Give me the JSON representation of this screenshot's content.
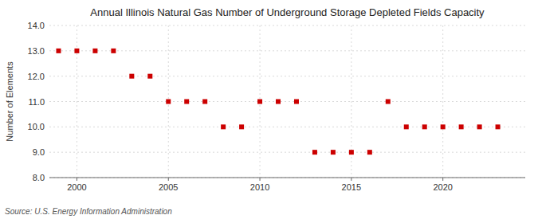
{
  "chart_data": {
    "type": "scatter",
    "title": "Annual Illinois Natural Gas Number of Underground Storage Depleted Fields Capacity",
    "ylabel": "Number of Elements",
    "source": "Source: U.S. Energy Information Administration",
    "x": [
      1999,
      2000,
      2001,
      2002,
      2003,
      2004,
      2005,
      2006,
      2007,
      2008,
      2009,
      2010,
      2011,
      2012,
      2013,
      2014,
      2015,
      2016,
      2017,
      2018,
      2019,
      2020,
      2021,
      2022,
      2023
    ],
    "values": [
      13,
      13,
      13,
      13,
      12,
      12,
      11,
      11,
      11,
      10,
      10,
      11,
      11,
      11,
      9,
      9,
      9,
      9,
      11,
      10,
      10,
      10,
      10,
      10,
      10
    ],
    "color": "#cc0000",
    "marker": "square",
    "xlim": [
      1998.5,
      2024.5
    ],
    "xticks": [
      2000,
      2005,
      2010,
      2015,
      2020
    ],
    "ylim": [
      8.0,
      14.0
    ],
    "yticks": [
      {
        "value": 8.0,
        "label": "8.0"
      },
      {
        "value": 9.0,
        "label": "9.0"
      },
      {
        "value": 10.0,
        "label": "10.0"
      },
      {
        "value": 11.0,
        "label": "11.0"
      },
      {
        "value": 12.0,
        "label": "12.0"
      },
      {
        "value": 13.0,
        "label": "13.0"
      },
      {
        "value": 14.0,
        "label": "14.0"
      }
    ],
    "grid": true
  }
}
